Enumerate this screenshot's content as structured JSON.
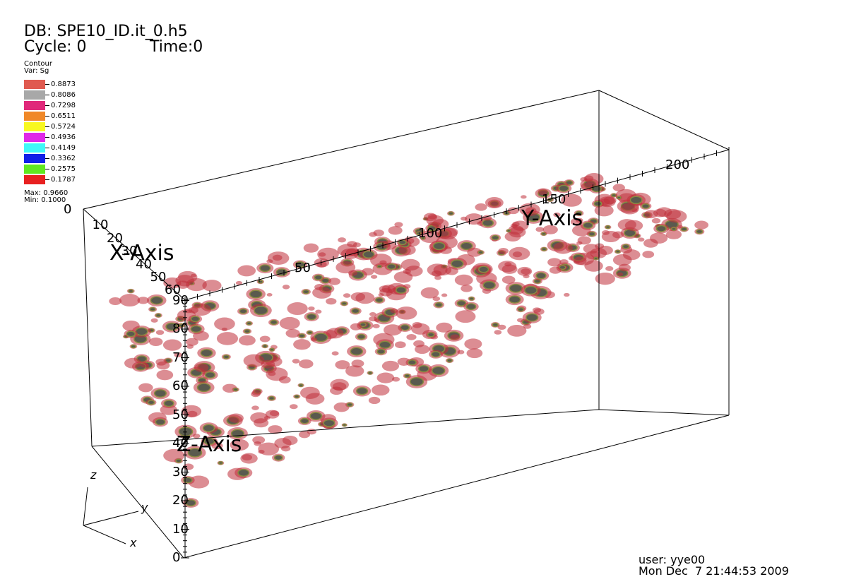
{
  "header": {
    "db": "DB: SPE10_ID.it_0.h5",
    "cycle": "Cycle: 0",
    "time": "Time:0"
  },
  "legend": {
    "plot_type": "Contour",
    "variable": "Var: Sg",
    "levels": [
      {
        "value": "0.8873",
        "color": "#e05a50"
      },
      {
        "value": "0.8086",
        "color": "#a8a8a8"
      },
      {
        "value": "0.7298",
        "color": "#e0287a"
      },
      {
        "value": "0.6511",
        "color": "#f08828"
      },
      {
        "value": "0.5724",
        "color": "#f8f820"
      },
      {
        "value": "0.4936",
        "color": "#e028e8"
      },
      {
        "value": "0.4149",
        "color": "#40f8f8"
      },
      {
        "value": "0.3362",
        "color": "#1020e8"
      },
      {
        "value": "0.2575",
        "color": "#60e820"
      },
      {
        "value": "0.1787",
        "color": "#e82020"
      }
    ],
    "max": "Max: 0.9660",
    "min": "Min: 0.1000"
  },
  "axes": {
    "x_title": "X-Axis",
    "y_title": "Y-Axis",
    "z_title": "Z-Axis",
    "x_ticks": [
      "0",
      "10",
      "20",
      "30",
      "40",
      "50",
      "60"
    ],
    "y_ticks": [
      "50",
      "100",
      "150",
      "200"
    ],
    "z_ticks": [
      "0",
      "10",
      "20",
      "30",
      "40",
      "50",
      "60",
      "70",
      "80",
      "90"
    ]
  },
  "triad": {
    "z": "z",
    "y": "y",
    "x": "x"
  },
  "footer": {
    "user": "user: yye00",
    "date": "Mon Dec  7 21:44:53 2009"
  },
  "colors": {
    "contour_outer": "#c0303a",
    "contour_core": "#5a5a4e",
    "contour_rim": "#8a8a40"
  }
}
